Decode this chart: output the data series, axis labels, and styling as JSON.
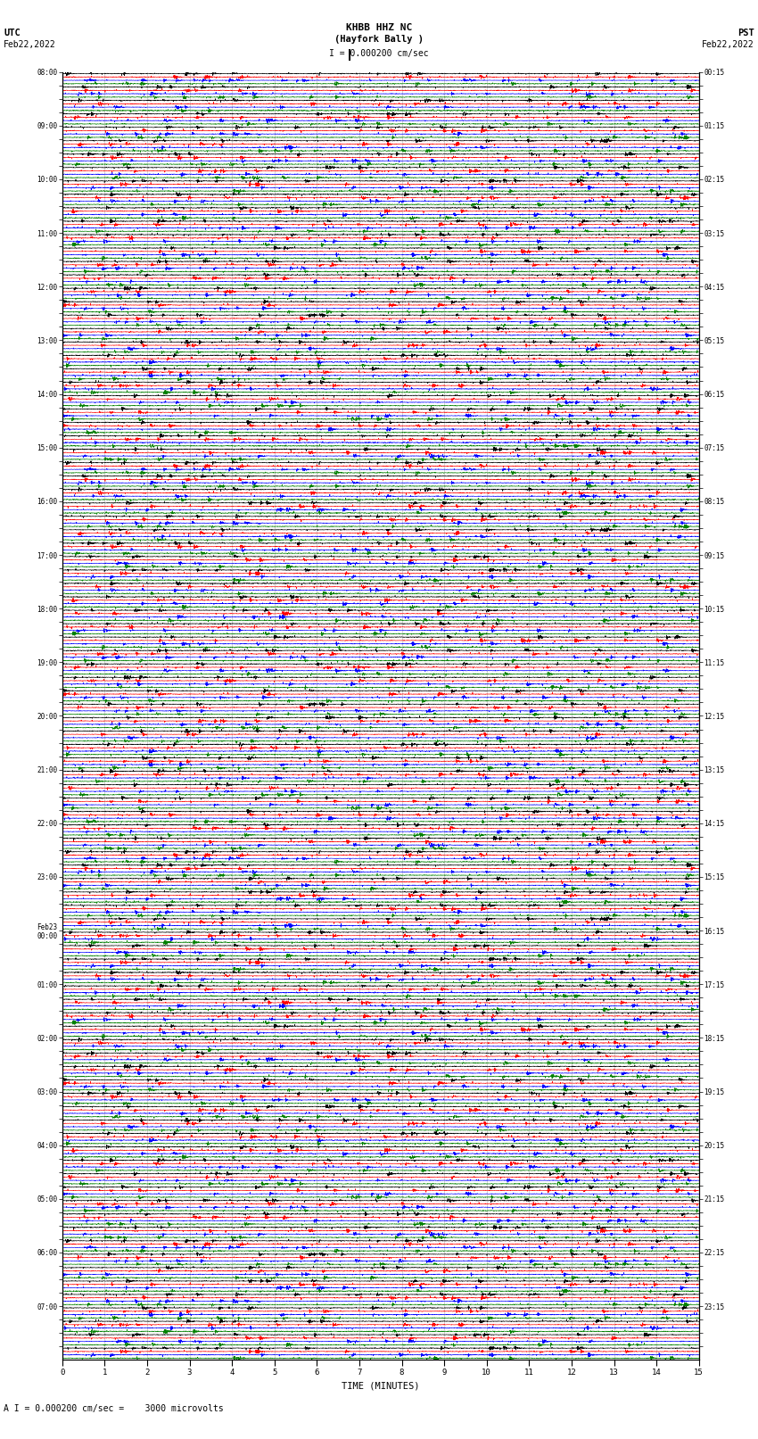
{
  "title_line1": "KHBB HHZ NC",
  "title_line2": "(Hayfork Bally )",
  "scale_text": "I = 0.000200 cm/sec",
  "utc_label": "UTC",
  "utc_date": "Feb22,2022",
  "pst_label": "PST",
  "pst_date": "Feb22,2022",
  "xlabel": "TIME (MINUTES)",
  "footer_text": "A I = 0.000200 cm/sec =    3000 microvolts",
  "left_times": [
    "08:00",
    "",
    "",
    "",
    "09:00",
    "",
    "",
    "",
    "10:00",
    "",
    "",
    "",
    "11:00",
    "",
    "",
    "",
    "12:00",
    "",
    "",
    "",
    "13:00",
    "",
    "",
    "",
    "14:00",
    "",
    "",
    "",
    "15:00",
    "",
    "",
    "",
    "16:00",
    "",
    "",
    "",
    "17:00",
    "",
    "",
    "",
    "18:00",
    "",
    "",
    "",
    "19:00",
    "",
    "",
    "",
    "20:00",
    "",
    "",
    "",
    "21:00",
    "",
    "",
    "",
    "22:00",
    "",
    "",
    "",
    "23:00",
    "",
    "",
    "",
    "Feb23\n00:00",
    "",
    "",
    "",
    "01:00",
    "",
    "",
    "",
    "02:00",
    "",
    "",
    "",
    "03:00",
    "",
    "",
    "",
    "04:00",
    "",
    "",
    "",
    "05:00",
    "",
    "",
    "",
    "06:00",
    "",
    "",
    "",
    "07:00",
    "",
    "",
    ""
  ],
  "right_times": [
    "00:15",
    "",
    "",
    "",
    "01:15",
    "",
    "",
    "",
    "02:15",
    "",
    "",
    "",
    "03:15",
    "",
    "",
    "",
    "04:15",
    "",
    "",
    "",
    "05:15",
    "",
    "",
    "",
    "06:15",
    "",
    "",
    "",
    "07:15",
    "",
    "",
    "",
    "08:15",
    "",
    "",
    "",
    "09:15",
    "",
    "",
    "",
    "10:15",
    "",
    "",
    "",
    "11:15",
    "",
    "",
    "",
    "12:15",
    "",
    "",
    "",
    "13:15",
    "",
    "",
    "",
    "14:15",
    "",
    "",
    "",
    "15:15",
    "",
    "",
    "",
    "16:15",
    "",
    "",
    "",
    "17:15",
    "",
    "",
    "",
    "18:15",
    "",
    "",
    "",
    "19:15",
    "",
    "",
    "",
    "20:15",
    "",
    "",
    "",
    "21:15",
    "",
    "",
    "",
    "22:15",
    "",
    "",
    "",
    "23:15",
    "",
    "",
    ""
  ],
  "colors": [
    "black",
    "red",
    "blue",
    "green"
  ],
  "n_rows": 96,
  "n_traces_per_row": 4,
  "minutes_per_row": 15,
  "fig_width": 8.5,
  "fig_height": 16.13,
  "bg_color": "white",
  "grid_color": "#aaaaaa",
  "noise_scales": [
    0.25,
    0.35,
    0.3,
    0.22
  ],
  "spike_prob": 0.015,
  "spike_scales": [
    1.8,
    2.5,
    2.2,
    1.6
  ],
  "trace_amplitude": 0.38,
  "n_points": 3600
}
